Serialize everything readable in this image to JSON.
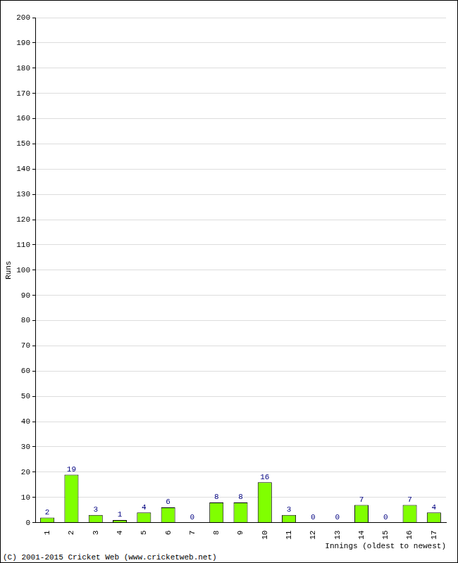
{
  "chart_data": {
    "type": "bar",
    "x_label": "Innings (oldest to newest)",
    "y_label": "Runs",
    "annotations": [
      "(C) 2001-2015 Cricket Web (www.cricketweb.net)"
    ],
    "categories": [
      "1",
      "2",
      "3",
      "4",
      "5",
      "6",
      "7",
      "8",
      "9",
      "10",
      "11",
      "12",
      "13",
      "14",
      "15",
      "16",
      "17"
    ],
    "values": [
      2,
      19,
      3,
      1,
      4,
      6,
      0,
      8,
      8,
      16,
      3,
      0,
      0,
      7,
      0,
      7,
      4
    ],
    "color": "#80ff00",
    "ylim": [
      0,
      200
    ],
    "yticks": [
      0,
      10,
      20,
      30,
      40,
      50,
      60,
      70,
      80,
      90,
      100,
      110,
      120,
      130,
      140,
      150,
      160,
      170,
      180,
      190,
      200
    ],
    "grid": true,
    "data_labels": true
  }
}
